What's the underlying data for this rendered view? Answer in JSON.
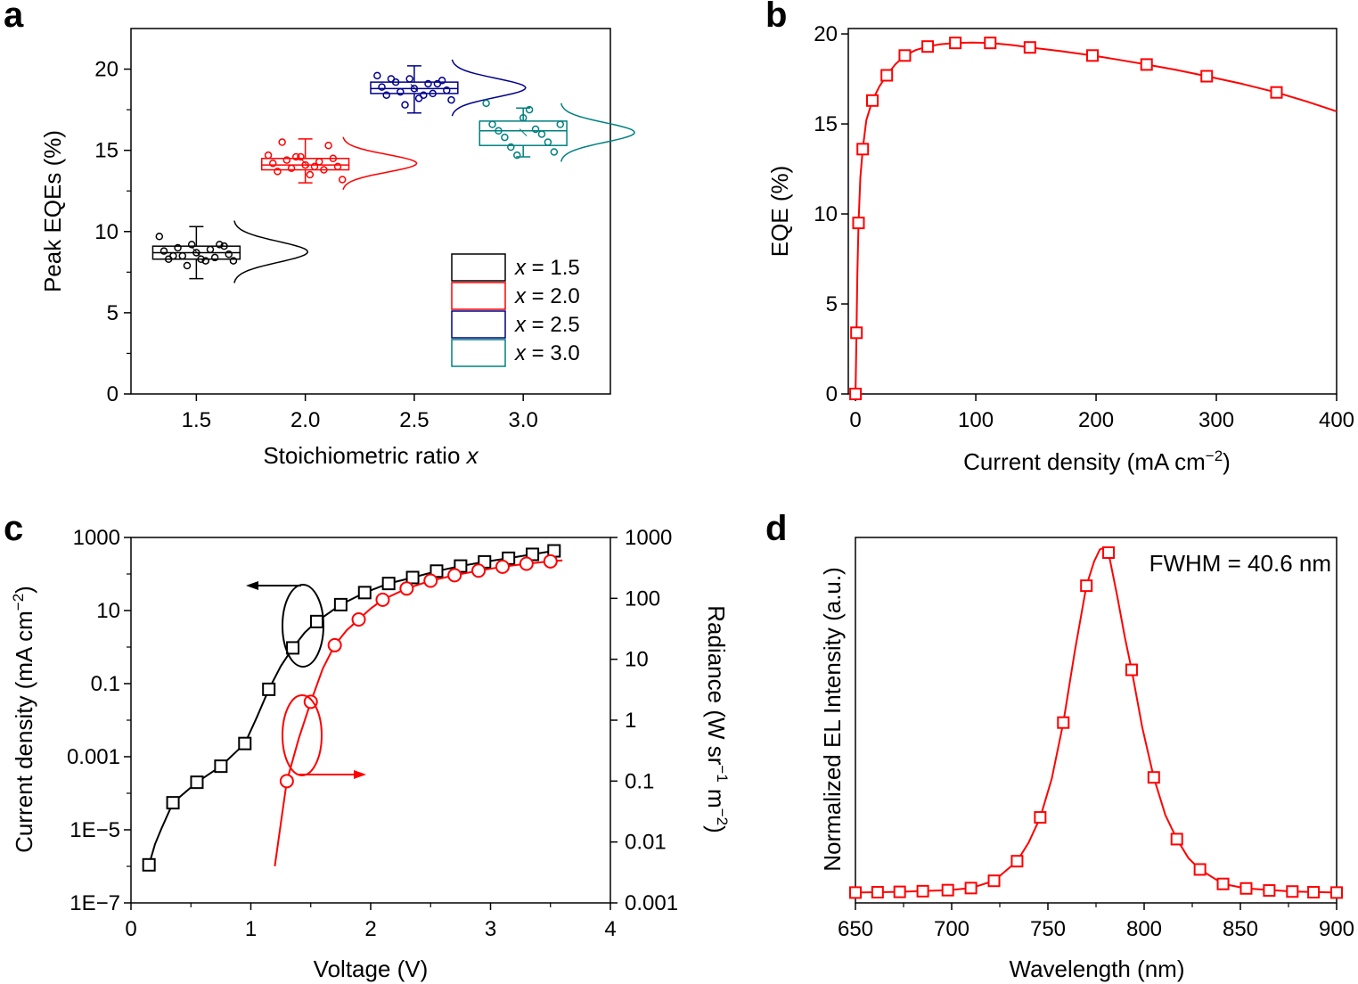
{
  "colors": {
    "black": "#000000",
    "red": "#ff0000",
    "blue": "#00008b",
    "teal": "#008080"
  },
  "chart_data": [
    {
      "panel": "a",
      "type": "box",
      "xlabel": "Stoichiometric ratio",
      "xlabel_var": "x",
      "ylabel": "Peak EQEs (%)",
      "xlim": [
        1.2,
        3.4
      ],
      "ylim": [
        0,
        22.5
      ],
      "xticks": [
        1.5,
        2.0,
        2.5,
        3.0
      ],
      "xtick_labels": [
        "1.5",
        "2.0",
        "2.5",
        "3.0"
      ],
      "yticks": [
        0,
        5,
        10,
        15,
        20
      ],
      "ytick_labels": [
        "0",
        "5",
        "10",
        "15",
        "20"
      ],
      "legend": [
        {
          "var": "x",
          "rest": " = 1.5",
          "color": "#000000"
        },
        {
          "var": "x",
          "rest": " = 2.0",
          "color": "#ff0000"
        },
        {
          "var": "x",
          "rest": " = 2.5",
          "color": "#00008b"
        },
        {
          "var": "x",
          "rest": " = 3.0",
          "color": "#008080"
        }
      ],
      "groups": [
        {
          "x": 1.5,
          "color": "#000000",
          "q1": 8.3,
          "median": 8.7,
          "mean": 8.75,
          "q3": 9.1,
          "whisker_low": 7.1,
          "whisker_high": 10.3,
          "points": [
            9.7,
            9.2,
            9.1,
            9.0,
            8.9,
            8.8,
            8.7,
            8.6,
            8.5,
            8.4,
            8.3,
            8.3,
            8.2,
            7.9,
            9.2,
            8.5,
            8.2
          ]
        },
        {
          "x": 2.0,
          "color": "#ff0000",
          "q1": 13.8,
          "median": 14.1,
          "mean": 14.2,
          "q3": 14.5,
          "whisker_low": 13.0,
          "whisker_high": 15.7,
          "points": [
            14.7,
            14.6,
            14.5,
            14.4,
            14.3,
            14.2,
            14.1,
            14.0,
            13.9,
            13.8,
            13.7,
            13.5,
            13.2,
            14.6,
            15.3,
            15.5,
            14.0
          ]
        },
        {
          "x": 2.5,
          "color": "#00008b",
          "q1": 18.5,
          "median": 18.8,
          "mean": 18.85,
          "q3": 19.2,
          "whisker_low": 17.3,
          "whisker_high": 20.2,
          "points": [
            19.6,
            19.4,
            19.3,
            19.2,
            19.1,
            18.9,
            18.8,
            18.7,
            18.6,
            18.5,
            18.4,
            18.2,
            18.1,
            17.8,
            19.1,
            19.4,
            18.4
          ]
        },
        {
          "x": 3.0,
          "color": "#008080",
          "q1": 15.3,
          "median": 16.2,
          "mean": 16.1,
          "q3": 16.8,
          "whisker_low": 14.6,
          "whisker_high": 17.6,
          "points": [
            17.9,
            17.5,
            16.6,
            16.3,
            16.2,
            16.0,
            15.8,
            15.5,
            15.2,
            14.9,
            14.7,
            16.6,
            17.0
          ]
        }
      ]
    },
    {
      "panel": "b",
      "type": "line",
      "xlabel": "Current density (mA cm",
      "xlabel_sup": "−2",
      "xlabel_end": ")",
      "ylabel": "EQE (%)",
      "xlim": [
        -6,
        400
      ],
      "ylim": [
        0,
        20.3
      ],
      "xticks": [
        0,
        100,
        200,
        300,
        400
      ],
      "xtick_labels": [
        "0",
        "100",
        "200",
        "300",
        "400"
      ],
      "yticks": [
        0,
        5,
        10,
        15,
        20
      ],
      "ytick_labels": [
        "0",
        "5",
        "10",
        "15",
        "20"
      ],
      "series": [
        {
          "name": "EQE",
          "color": "#ff0000",
          "marker": "square",
          "x": [
            0,
            0.8,
            2.5,
            6,
            14,
            26,
            41,
            60,
            83,
            112,
            145,
            197,
            242,
            292,
            350
          ],
          "y": [
            0,
            3.4,
            9.5,
            13.6,
            16.3,
            17.7,
            18.8,
            19.3,
            19.5,
            19.5,
            19.25,
            18.8,
            18.3,
            17.65,
            16.75
          ],
          "curve_x": [
            0,
            0.3,
            0.8,
            1.5,
            2.5,
            4,
            6,
            9,
            14,
            20,
            26,
            33,
            41,
            50,
            60,
            70,
            83,
            97,
            112,
            128,
            145,
            170,
            197,
            220,
            242,
            267,
            292,
            320,
            350,
            375,
            400
          ],
          "curve_y": [
            0,
            1.2,
            3.4,
            6.5,
            9.5,
            12.0,
            13.6,
            15.2,
            16.3,
            17.1,
            17.7,
            18.3,
            18.8,
            19.1,
            19.3,
            19.42,
            19.5,
            19.52,
            19.5,
            19.4,
            19.25,
            19.05,
            18.8,
            18.55,
            18.3,
            18.0,
            17.65,
            17.25,
            16.75,
            16.25,
            15.7
          ]
        }
      ]
    },
    {
      "panel": "c",
      "type": "line",
      "scale": "log",
      "xlabel": "Voltage (V)",
      "ylabel": "Current density (mA cm",
      "ylabel_sup": "−2",
      "ylabel_end": ")",
      "ylabel_right": "Radiance (W sr",
      "ylabel_right_sup1": "−1",
      "ylabel_right_mid": " m",
      "ylabel_right_sup2": "−2",
      "ylabel_right_end": ")",
      "xlim": [
        0,
        4
      ],
      "xticks": [
        0,
        1,
        2,
        3,
        4
      ],
      "xtick_labels": [
        "0",
        "1",
        "2",
        "3",
        "4"
      ],
      "ylim_log10": [
        -7,
        3
      ],
      "yticks_log10": [
        -7,
        -5,
        -3,
        -1,
        1,
        3
      ],
      "ytick_labels": [
        "1E−7",
        "1E−5",
        "0.001",
        "0.1",
        "10",
        "1000"
      ],
      "y2lim_log10": [
        -3,
        3
      ],
      "y2ticks_log10": [
        -3,
        -2,
        -1,
        0,
        1,
        2,
        3
      ],
      "y2tick_labels": [
        "0.001",
        "0.01",
        "0.1",
        "1",
        "10",
        "100",
        "1000"
      ],
      "series": [
        {
          "name": "Current density",
          "axis": "left",
          "color": "#000000",
          "marker": "square",
          "x": [
            0.15,
            0.35,
            0.55,
            0.75,
            0.95,
            1.15,
            1.35,
            1.55,
            1.75,
            1.95,
            2.15,
            2.35,
            2.55,
            2.75,
            2.95,
            3.15,
            3.35,
            3.53
          ],
          "y": [
            1.1e-06,
            5.5e-05,
            0.0002,
            0.00055,
            0.0023,
            0.07,
            0.95,
            5,
            14.5,
            31,
            55,
            80,
            120,
            165,
            215,
            270,
            345,
            430
          ],
          "curve_x": [
            0.15,
            0.2,
            0.25,
            0.35,
            0.55,
            0.75,
            0.95,
            1.05,
            1.15,
            1.25,
            1.35,
            1.45,
            1.55,
            1.75,
            1.95,
            2.15,
            2.35,
            2.55,
            2.75,
            2.95,
            3.15,
            3.35,
            3.53
          ],
          "curve_y": [
            1.1e-06,
            4e-06,
            1e-05,
            5.5e-05,
            0.0002,
            0.00055,
            0.0023,
            0.012,
            0.07,
            0.3,
            0.95,
            2.5,
            5,
            14.5,
            31,
            55,
            80,
            120,
            165,
            215,
            270,
            345,
            430
          ]
        },
        {
          "name": "Radiance",
          "axis": "right",
          "color": "#ff0000",
          "marker": "circle",
          "x": [
            1.3,
            1.5,
            1.7,
            1.9,
            2.1,
            2.3,
            2.5,
            2.7,
            2.9,
            3.1,
            3.3,
            3.5
          ],
          "y": [
            0.1,
            2.0,
            17,
            45,
            95,
            145,
            195,
            240,
            285,
            330,
            370,
            405
          ],
          "curve_x": [
            1.2,
            1.25,
            1.3,
            1.4,
            1.5,
            1.6,
            1.7,
            1.8,
            1.9,
            2.0,
            2.1,
            2.3,
            2.5,
            2.7,
            2.9,
            3.1,
            3.3,
            3.5,
            3.6
          ],
          "curve_y": [
            0.004,
            0.02,
            0.1,
            0.5,
            2.0,
            7,
            17,
            30,
            45,
            68,
            95,
            145,
            195,
            240,
            285,
            330,
            370,
            405,
            420
          ]
        }
      ]
    },
    {
      "panel": "d",
      "type": "line",
      "xlabel": "Wavelength (nm)",
      "ylabel": "Normalized EL Intensity (a.u.)",
      "annotation": "FWHM = 40.6 nm",
      "xlim": [
        650,
        900
      ],
      "ylim": [
        -0.03,
        1.03
      ],
      "xticks": [
        650,
        700,
        750,
        800,
        850,
        900
      ],
      "xtick_labels": [
        "650",
        "700",
        "750",
        "800",
        "850",
        "900"
      ],
      "series": [
        {
          "name": "EL",
          "color": "#ff0000",
          "marker": "square",
          "x": [
            650,
            661.5,
            673,
            685,
            698,
            710,
            722,
            734,
            746,
            758,
            770,
            781.5,
            793.5,
            805,
            817,
            829,
            841,
            853,
            865,
            877,
            888,
            900
          ],
          "y": [
            0.0,
            0.001,
            0.002,
            0.004,
            0.007,
            0.013,
            0.034,
            0.091,
            0.218,
            0.493,
            0.89,
            0.986,
            0.646,
            0.334,
            0.155,
            0.067,
            0.025,
            0.012,
            0.006,
            0.003,
            0.001,
            0.0
          ],
          "curve_x": [
            650,
            673,
            698,
            710,
            722,
            734,
            740,
            746,
            752,
            758,
            764,
            770,
            774,
            777,
            779,
            781.5,
            786,
            790,
            793.5,
            799,
            805,
            811,
            817,
            823,
            829,
            841,
            853,
            877,
            900
          ],
          "curve_y": [
            0.0,
            0.002,
            0.007,
            0.013,
            0.034,
            0.091,
            0.145,
            0.218,
            0.33,
            0.493,
            0.7,
            0.89,
            0.96,
            0.995,
            1.0,
            0.986,
            0.86,
            0.74,
            0.646,
            0.48,
            0.334,
            0.225,
            0.155,
            0.1,
            0.067,
            0.025,
            0.012,
            0.003,
            0.0
          ]
        }
      ]
    }
  ]
}
